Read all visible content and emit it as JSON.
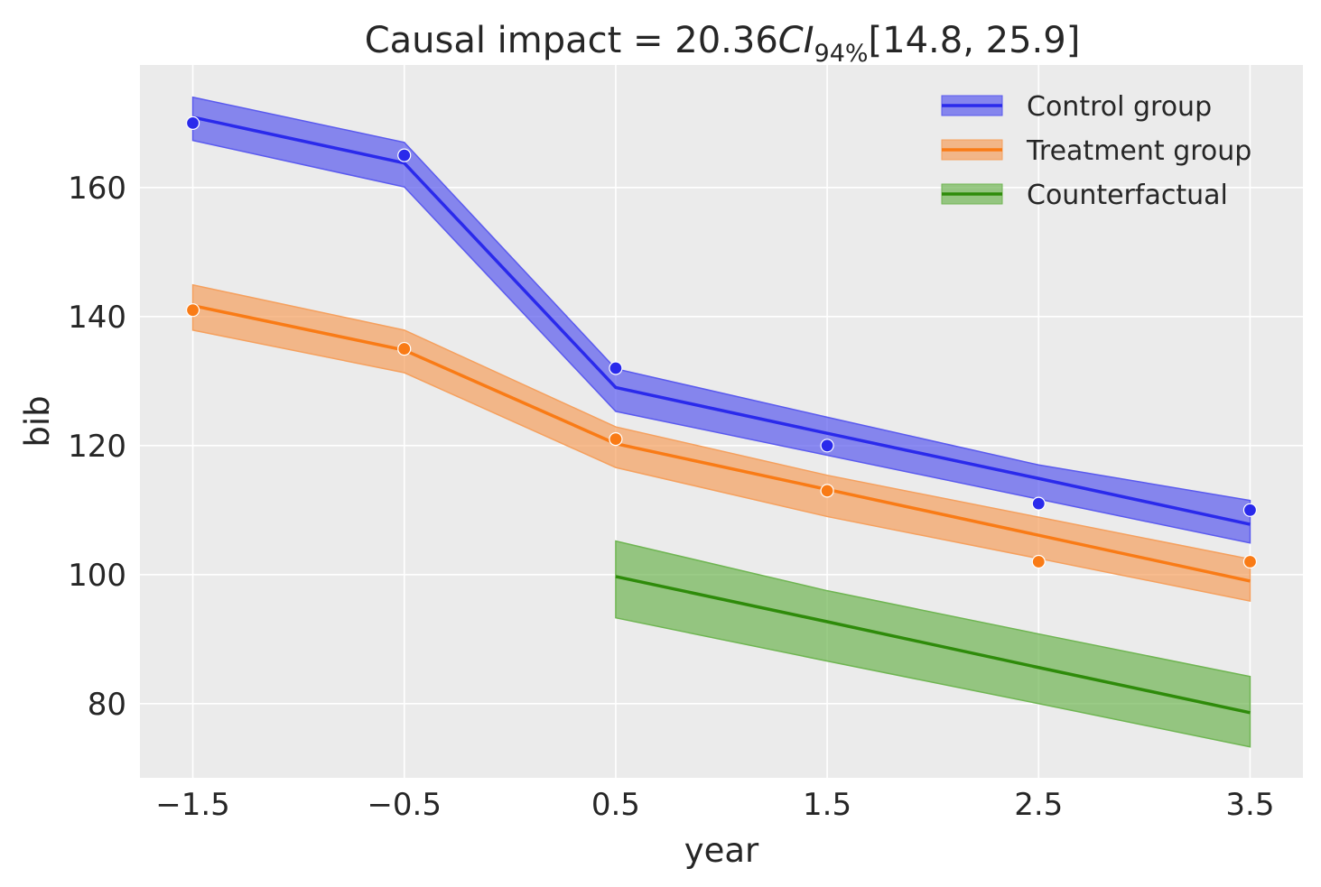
{
  "chart_data": {
    "type": "line",
    "title": {
      "prefix": "Causal impact = 20.36",
      "ci_label": "CI",
      "ci_sub": "94%",
      "interval": "[14.8, 25.9]"
    },
    "xlabel": "year",
    "ylabel": "bib",
    "xlim": [
      -1.75,
      3.75
    ],
    "ylim": [
      68.5,
      179
    ],
    "xticks": [
      -1.5,
      -0.5,
      0.5,
      1.5,
      2.5,
      3.5
    ],
    "xtick_labels": [
      "−1.5",
      "−0.5",
      "0.5",
      "1.5",
      "2.5",
      "3.5"
    ],
    "yticks": [
      80,
      100,
      120,
      140,
      160
    ],
    "ytick_labels": [
      "80",
      "100",
      "120",
      "140",
      "160"
    ],
    "grid": true,
    "background": "#ebebeb",
    "legend_position": "top-right",
    "series": [
      {
        "name": "Control group",
        "color": "#2a2aeb",
        "band_color": "#5a5aee",
        "x": [
          -1.5,
          -0.5,
          0.5,
          1.5,
          2.5,
          3.5
        ],
        "mean": [
          170.9,
          163.8,
          129.0,
          121.9,
          114.9,
          107.8
        ],
        "lower": [
          167.3,
          160.1,
          125.3,
          118.5,
          111.7,
          104.9
        ],
        "upper": [
          174.0,
          167.0,
          131.9,
          124.4,
          117.0,
          111.5
        ],
        "observed": [
          170,
          165,
          132,
          120,
          111,
          110
        ]
      },
      {
        "name": "Treatment group",
        "color": "#f97b16",
        "band_color": "#f5a05e",
        "x": [
          -1.5,
          -0.5,
          0.5,
          1.5,
          2.5,
          3.5
        ],
        "mean": [
          141.7,
          134.8,
          120.3,
          113.2,
          106.1,
          99.0
        ],
        "lower": [
          137.9,
          131.3,
          116.6,
          109.0,
          102.5,
          95.9
        ],
        "upper": [
          144.9,
          137.9,
          122.9,
          115.4,
          108.9,
          102.4
        ],
        "observed": [
          141,
          135,
          121,
          113,
          102,
          102
        ]
      },
      {
        "name": "Counterfactual",
        "color": "#2e8b0a",
        "band_color": "#6fb552",
        "x": [
          0.5,
          1.5,
          2.5,
          3.5
        ],
        "mean": [
          99.7,
          92.7,
          85.6,
          78.6
        ],
        "lower": [
          93.3,
          86.6,
          80.0,
          73.3
        ],
        "upper": [
          105.2,
          97.5,
          90.8,
          84.2
        ],
        "observed": []
      }
    ]
  }
}
